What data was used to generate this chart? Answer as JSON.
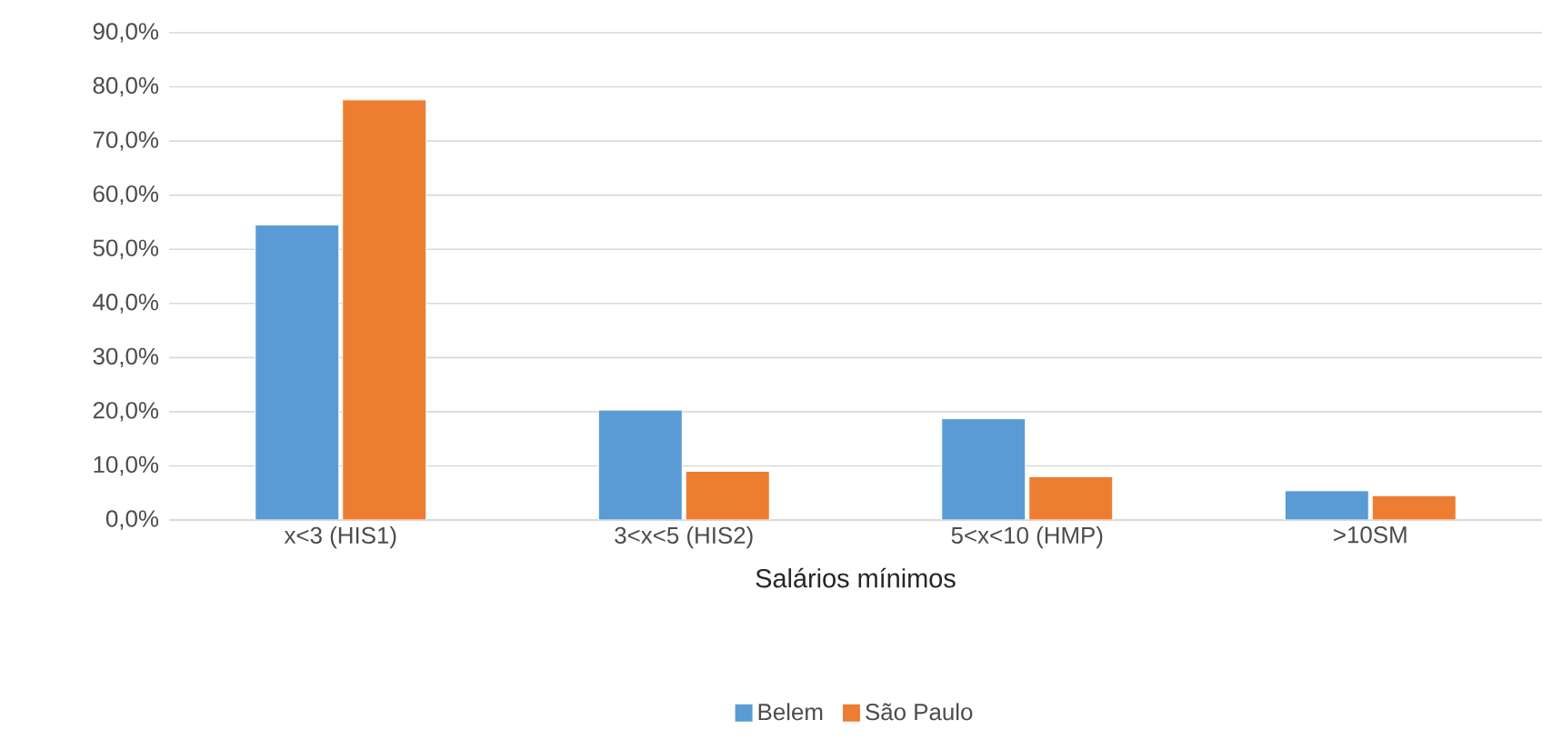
{
  "chart_data": {
    "type": "bar",
    "xlabel": "Salários mínimos",
    "categories": [
      "x<3 (HIS1)",
      "3<x<5 (HIS2)",
      "5<x<10 (HMP)",
      ">10SM"
    ],
    "series": [
      {
        "name": "Belem",
        "color": "#5b9bd5",
        "values": [
          54.5,
          20.3,
          18.7,
          5.4
        ]
      },
      {
        "name": "São Paulo",
        "color": "#ed7d31",
        "values": [
          77.6,
          9.0,
          8.0,
          4.5
        ]
      }
    ],
    "ylim": [
      0,
      90
    ],
    "yticks": [
      {
        "value": 0,
        "label": "0,0%"
      },
      {
        "value": 10,
        "label": "10,0%"
      },
      {
        "value": 20,
        "label": "20,0%"
      },
      {
        "value": 30,
        "label": "30,0%"
      },
      {
        "value": 40,
        "label": "40,0%"
      },
      {
        "value": 50,
        "label": "50,0%"
      },
      {
        "value": 60,
        "label": "60,0%"
      },
      {
        "value": 70,
        "label": "70,0%"
      },
      {
        "value": 80,
        "label": "80,0%"
      },
      {
        "value": 90,
        "label": "90,0%"
      }
    ],
    "grid": "y",
    "legend": "bottom"
  }
}
